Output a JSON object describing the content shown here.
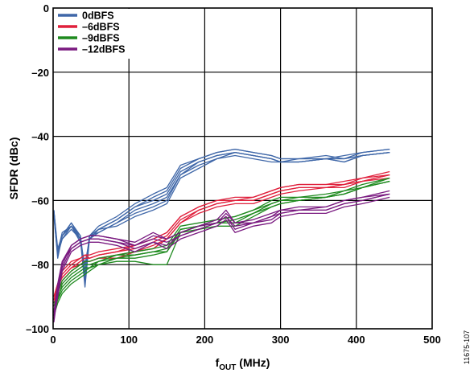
{
  "chart_data": {
    "type": "line",
    "xlabel_main": "f",
    "xlabel_sub": "OUT",
    "xlabel_unit": " (MHz)",
    "ylabel": "SFDR (dBc)",
    "xlim": [
      0,
      500
    ],
    "ylim": [
      -100,
      0
    ],
    "xticks": [
      0,
      100,
      200,
      300,
      400,
      500
    ],
    "yticks": [
      0,
      -20,
      -40,
      -60,
      -80,
      -100
    ],
    "ytick_labels": [
      "0",
      "–20",
      "–40",
      "–60",
      "–80",
      "–100"
    ],
    "grid": true,
    "legend_position": "top-left",
    "figure_id": "11675-107",
    "series": [
      {
        "name": "0dBFS",
        "color": "#3f67a8",
        "x": [
          1,
          6,
          12,
          24,
          36,
          42,
          48,
          60,
          84,
          108,
          132,
          150,
          168,
          192,
          216,
          240,
          264,
          288,
          300,
          324,
          360,
          384,
          408,
          444
        ],
        "traces": [
          [
            -64,
            -76,
            -70,
            -68,
            -72,
            -87,
            -72,
            -69,
            -66,
            -62,
            -59,
            -57,
            -50,
            -47,
            -45,
            -44,
            -45,
            -46,
            -47,
            -47,
            -46,
            -47,
            -45,
            -44
          ],
          [
            -64,
            -78,
            -71,
            -67,
            -71,
            -85,
            -71,
            -68,
            -65,
            -61,
            -58,
            -56,
            -49,
            -47,
            -45,
            -44,
            -45,
            -46,
            -47,
            -47,
            -47,
            -46,
            -45,
            -44
          ],
          [
            -63,
            -77,
            -72,
            -68,
            -73,
            -80,
            -72,
            -69,
            -66,
            -62,
            -60,
            -58,
            -51,
            -48,
            -46,
            -45,
            -46,
            -47,
            -48,
            -47,
            -47,
            -47,
            -46,
            -45
          ],
          [
            -63,
            -76,
            -72,
            -69,
            -72,
            -83,
            -72,
            -70,
            -67,
            -63,
            -61,
            -59,
            -52,
            -48,
            -46,
            -45,
            -46,
            -47,
            -48,
            -48,
            -47,
            -47,
            -46,
            -45
          ],
          [
            -63,
            -75,
            -71,
            -68,
            -71,
            -82,
            -71,
            -70,
            -67,
            -64,
            -62,
            -60,
            -52,
            -49,
            -47,
            -45,
            -46,
            -47,
            -48,
            -48,
            -47,
            -48,
            -46,
            -45
          ],
          [
            -65,
            -77,
            -71,
            -67,
            -72,
            -84,
            -71,
            -69,
            -68,
            -65,
            -63,
            -61,
            -53,
            -50,
            -47,
            -46,
            -47,
            -48,
            -48,
            -48,
            -47,
            -48,
            -46,
            -45
          ]
        ]
      },
      {
        "name": "–6dBFS",
        "color": "#e0203c",
        "x": [
          1,
          6,
          12,
          24,
          36,
          42,
          48,
          60,
          84,
          108,
          132,
          150,
          168,
          192,
          216,
          240,
          264,
          288,
          300,
          324,
          360,
          384,
          408,
          444
        ],
        "traces": [
          [
            -90,
            -86,
            -82,
            -79,
            -78,
            -77,
            -77,
            -76,
            -75,
            -74,
            -72,
            -70,
            -65,
            -62,
            -60,
            -59,
            -59,
            -57,
            -56,
            -55,
            -55,
            -54,
            -53,
            -51
          ],
          [
            -92,
            -88,
            -83,
            -80,
            -78,
            -77,
            -78,
            -77,
            -76,
            -74,
            -72,
            -70,
            -65,
            -62,
            -60,
            -60,
            -59,
            -57,
            -56,
            -55,
            -55,
            -55,
            -53,
            -52
          ],
          [
            -91,
            -87,
            -84,
            -81,
            -79,
            -78,
            -78,
            -77,
            -76,
            -75,
            -73,
            -71,
            -66,
            -63,
            -61,
            -60,
            -60,
            -58,
            -57,
            -56,
            -56,
            -55,
            -54,
            -52
          ],
          [
            -93,
            -89,
            -85,
            -82,
            -80,
            -79,
            -79,
            -78,
            -77,
            -76,
            -74,
            -72,
            -67,
            -63,
            -61,
            -60,
            -60,
            -58,
            -57,
            -56,
            -56,
            -55,
            -54,
            -52
          ],
          [
            -90,
            -86,
            -84,
            -81,
            -80,
            -79,
            -79,
            -78,
            -78,
            -76,
            -75,
            -72,
            -67,
            -64,
            -62,
            -61,
            -61,
            -59,
            -58,
            -57,
            -56,
            -56,
            -54,
            -53
          ]
        ]
      },
      {
        "name": "–9dBFS",
        "color": "#1e8a1e",
        "x": [
          1,
          6,
          12,
          24,
          36,
          42,
          48,
          60,
          84,
          108,
          132,
          150,
          168,
          192,
          216,
          240,
          264,
          288,
          300,
          324,
          360,
          384,
          408,
          444
        ],
        "traces": [
          [
            -93,
            -89,
            -85,
            -82,
            -80,
            -79,
            -79,
            -78,
            -77,
            -76,
            -75,
            -74,
            -68,
            -67,
            -66,
            -65,
            -63,
            -60,
            -59,
            -59,
            -58,
            -57,
            -55,
            -53
          ],
          [
            -95,
            -91,
            -86,
            -83,
            -81,
            -80,
            -80,
            -79,
            -77,
            -77,
            -76,
            -75,
            -69,
            -68,
            -66,
            -65,
            -63,
            -61,
            -60,
            -59,
            -59,
            -57,
            -56,
            -53
          ],
          [
            -92,
            -90,
            -87,
            -84,
            -82,
            -81,
            -81,
            -79,
            -78,
            -77,
            -76,
            -76,
            -69,
            -68,
            -67,
            -66,
            -64,
            -61,
            -60,
            -60,
            -59,
            -58,
            -56,
            -54
          ],
          [
            -94,
            -91,
            -88,
            -85,
            -83,
            -82,
            -81,
            -80,
            -78,
            -78,
            -77,
            -76,
            -70,
            -68,
            -67,
            -67,
            -64,
            -62,
            -61,
            -60,
            -59,
            -58,
            -56,
            -54
          ],
          [
            -96,
            -92,
            -89,
            -86,
            -84,
            -83,
            -82,
            -80,
            -79,
            -79,
            -80,
            -80,
            -70,
            -69,
            -68,
            -68,
            -65,
            -62,
            -61,
            -60,
            -59,
            -58,
            -56,
            -54
          ]
        ]
      },
      {
        "name": "–12dBFS",
        "color": "#7a1a80",
        "x": [
          1,
          6,
          12,
          24,
          36,
          48,
          60,
          84,
          108,
          132,
          150,
          168,
          192,
          216,
          228,
          240,
          264,
          288,
          300,
          324,
          360,
          384,
          408,
          444
        ],
        "traces": [
          [
            -97,
            -88,
            -80,
            -74,
            -72,
            -71,
            -71,
            -72,
            -73,
            -70,
            -72,
            -70,
            -68,
            -66,
            -63,
            -67,
            -66,
            -64,
            -63,
            -62,
            -62,
            -60,
            -59,
            -57
          ],
          [
            -96,
            -87,
            -79,
            -74,
            -72,
            -71,
            -71,
            -72,
            -74,
            -71,
            -72,
            -70,
            -68,
            -67,
            -64,
            -67,
            -67,
            -65,
            -63,
            -63,
            -62,
            -60,
            -59,
            -58
          ],
          [
            -98,
            -89,
            -81,
            -75,
            -73,
            -72,
            -72,
            -73,
            -74,
            -72,
            -73,
            -71,
            -69,
            -67,
            -65,
            -68,
            -67,
            -65,
            -64,
            -63,
            -63,
            -61,
            -60,
            -58
          ],
          [
            -95,
            -86,
            -79,
            -75,
            -73,
            -72,
            -72,
            -73,
            -75,
            -73,
            -74,
            -71,
            -69,
            -67,
            -65,
            -69,
            -67,
            -66,
            -64,
            -63,
            -63,
            -61,
            -60,
            -58
          ],
          [
            -97,
            -90,
            -82,
            -76,
            -74,
            -73,
            -73,
            -74,
            -76,
            -73,
            -75,
            -72,
            -70,
            -68,
            -66,
            -70,
            -68,
            -67,
            -65,
            -64,
            -64,
            -62,
            -61,
            -59
          ]
        ]
      }
    ]
  }
}
